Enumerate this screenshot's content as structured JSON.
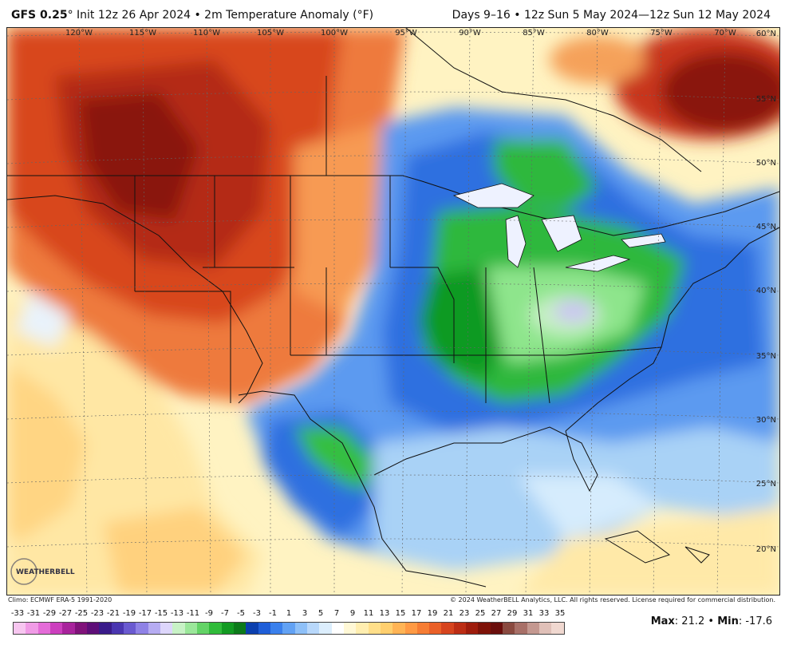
{
  "header": {
    "model": "GFS 0.25",
    "deg": "°",
    "init": " Init 12z 26 Apr 2024 • 2m Temperature Anomaly (°F)",
    "valid": "Days 9–16 • 12z Sun 5 May 2024—12z Sun 12 May 2024"
  },
  "map": {
    "lon_labels": [
      "120°W",
      "115°W",
      "110°W",
      "105°W",
      "100°W",
      "95°W",
      "90°W",
      "85°W",
      "80°W",
      "75°W",
      "70°W"
    ],
    "lat_labels": [
      "60°N",
      "55°N",
      "50°N",
      "45°N",
      "40°N",
      "35°N",
      "30°N",
      "25°N",
      "20°N"
    ]
  },
  "logo_text": "WEATHERBELL",
  "footer": {
    "climo": "Climo: ECMWF ERA-5 1991-2020",
    "copyright": "© 2024 WeatherBELL Analytics, LLC. All rights reserved. License required for commercial distribution.",
    "max_label": "Max",
    "max_value": ": 21.2 • ",
    "min_label": "Min",
    "min_value": ": -17.6"
  },
  "scale": {
    "ticks": [
      "-33",
      "-31",
      "-29",
      "-27",
      "-25",
      "-23",
      "-21",
      "-19",
      "-17",
      "-15",
      "-13",
      "-11",
      "-9",
      "-7",
      "-5",
      "-3",
      "-1",
      "1",
      "3",
      "5",
      "7",
      "9",
      "11",
      "13",
      "15",
      "17",
      "19",
      "21",
      "23",
      "25",
      "27",
      "29",
      "31",
      "33",
      "35"
    ],
    "colors": [
      "#f7c6f0",
      "#f09be6",
      "#e46cd8",
      "#cc3fbe",
      "#a8239c",
      "#80127a",
      "#5e0e78",
      "#3a1b8a",
      "#4a36b0",
      "#6a5ad0",
      "#8f82e6",
      "#b6acf2",
      "#ddd6fb",
      "#c8f2c6",
      "#9be79a",
      "#63d366",
      "#30bb3a",
      "#129a22",
      "#0c7a1a",
      "#0b3fae",
      "#1f5ed8",
      "#3a80ec",
      "#62a2f4",
      "#8ec0f8",
      "#b8d8fb",
      "#dceefd",
      "#ffffff",
      "#fff8d6",
      "#ffeeb0",
      "#ffdf8a",
      "#ffcf6e",
      "#ffb455",
      "#ff9a44",
      "#f67d34",
      "#ea6028",
      "#d6441e",
      "#bc2d14",
      "#9e1c0c",
      "#7e1208",
      "#6a0e0c",
      "#8a4a40",
      "#a87068",
      "#c49890",
      "#e0c0b8",
      "#f0d8d0"
    ]
  }
}
